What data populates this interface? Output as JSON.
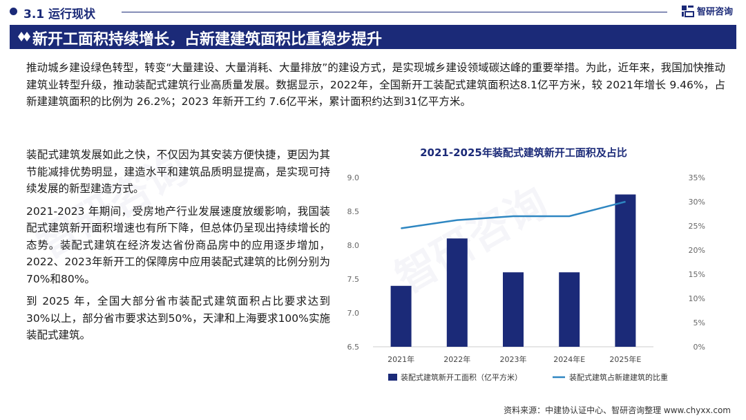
{
  "header": {
    "section_title": "3.1 运行现状",
    "logo_text": "智研咨询"
  },
  "banner": {
    "title": "新开工面积持续增长，占新建建筑面积比重稳步提升"
  },
  "intro": "推动城乡建设绿色转型，转变“大量建设、大量消耗、大量排放”的建设方式，是实现城乡建设领域碳达峰的重要举措。为此，近年来，我国加快推动建筑业转型升级，推动装配式建筑行业高质量发展。数据显示，2022年，全国新开工装配式建筑面积达8.1亿平方米，较 2021年增长 9.46%，占新建建筑面积的比例为 26.2%；2023 年新开工约 7.6亿平米，累计面积约达到31亿平方米。",
  "paragraphs": [
    "装配式建筑发展如此之快，不仅因为其安装方便快捷，更因为其节能减排优势明显，建造水平和建筑品质明显提高，是实现可持续发展的新型建造方式。",
    "2021-2023 年期间，受房地产行业发展速度放缓影响，我国装配式建筑新开面积增速也有所下降，但总体仍呈现出持续增长的态势。装配式建筑在经济发达省份商品房中的应用逐步增加，2022、2023年新开工的保障房中应用装配式建筑的比例分别为70%和80%。",
    "到 2025 年，全国大部分省市装配式建筑面积占比要求达到 30%以上，部分省市要求达到50%，天津和上海要求100%实施装配式建筑。"
  ],
  "chart_data": {
    "type": "bar",
    "title": "2021-2025年装配式建筑新开工面积及占比",
    "categories": [
      "2021年",
      "2022年",
      "2023年",
      "2024年E",
      "2025年E"
    ],
    "series": [
      {
        "name": "装配式建筑新开工面积（亿平方米）",
        "type": "bar",
        "axis": "left",
        "values": [
          7.4,
          8.1,
          7.6,
          7.6,
          8.75
        ]
      },
      {
        "name": "装配式建筑占新建建筑的比重",
        "type": "line",
        "axis": "right",
        "values": [
          0.245,
          0.262,
          0.27,
          0.27,
          0.3
        ]
      }
    ],
    "ylim": [
      6.5,
      9.0
    ],
    "yticks": [
      "6.5",
      "7.0",
      "7.5",
      "8.0",
      "8.5",
      "9.0"
    ],
    "y2lim": [
      0,
      0.35
    ],
    "y2ticks": [
      "0%",
      "5%",
      "10%",
      "15%",
      "20%",
      "25%",
      "30%",
      "35%"
    ],
    "bar_color": "#1b2a78",
    "line_color": "#2e86c1",
    "legend_position": "bottom"
  },
  "footer": "资料来源：中建协认证中心、智研咨询整理   www.chyxx.com"
}
